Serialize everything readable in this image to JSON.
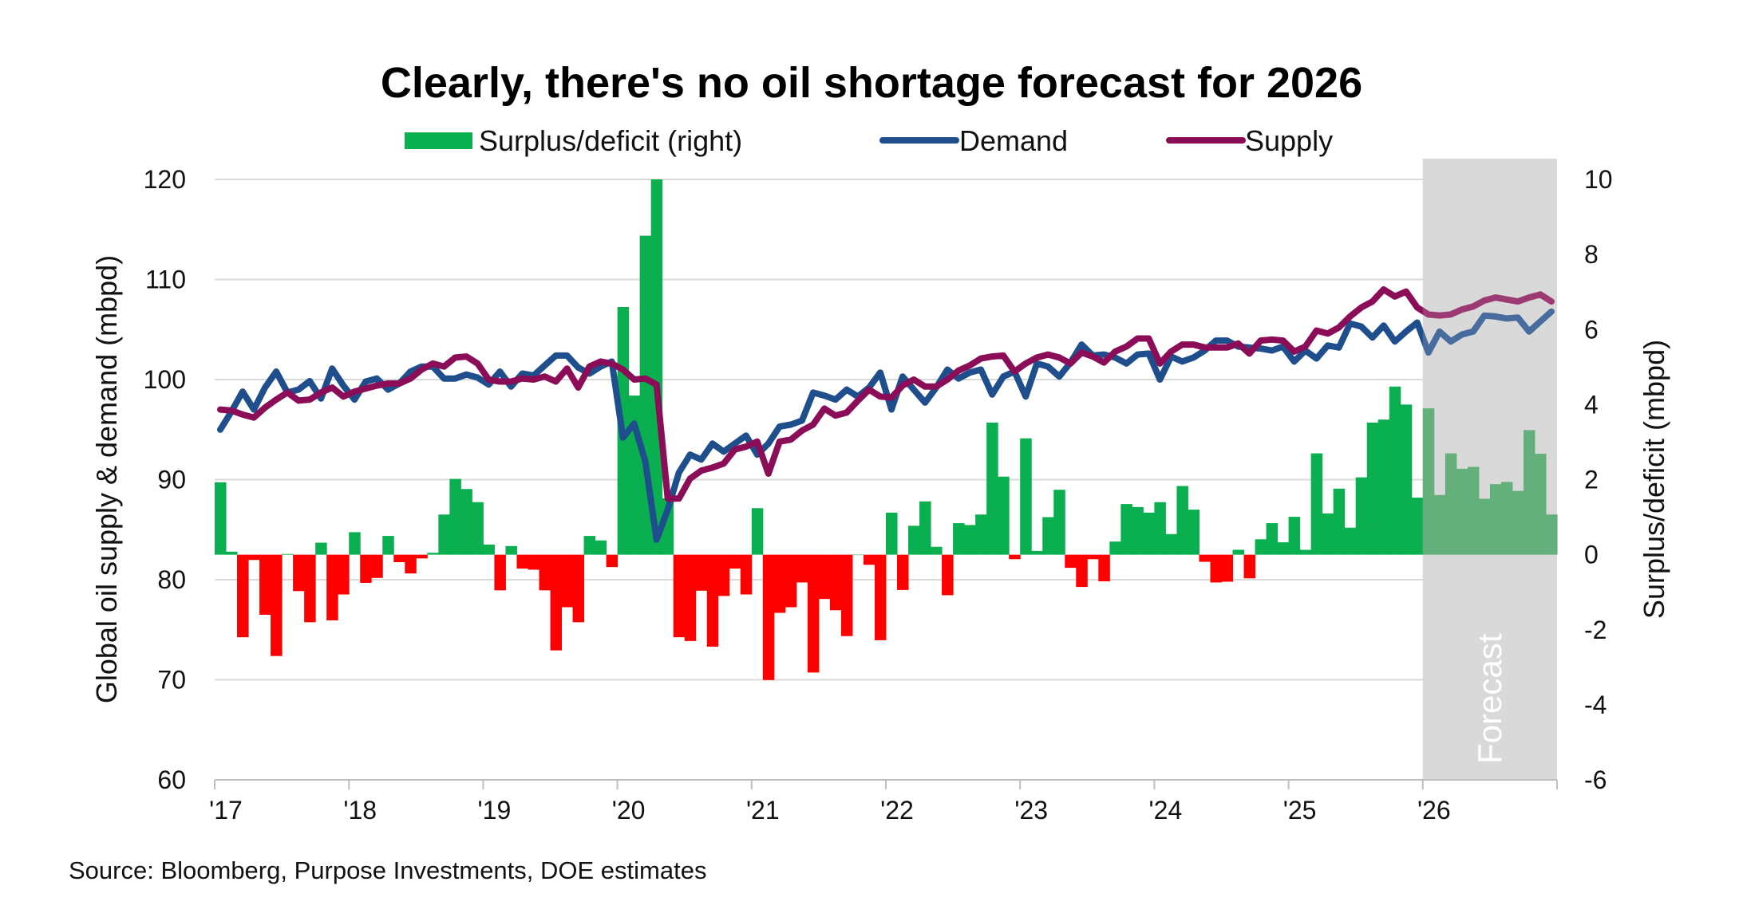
{
  "chart_data": {
    "type": "bar+line",
    "title": "Clearly, there's no oil shortage forecast for 2026",
    "source": "Source: Bloomberg, Purpose Investments, DOE estimates",
    "ylabel": "Global oil supply & demand (mbpd)",
    "y2label": "Surplus/deficit (mbpd)",
    "ylim": [
      60,
      120
    ],
    "y2lim": [
      -6,
      10
    ],
    "yticks": [
      "60",
      "70",
      "80",
      "90",
      "100",
      "110",
      "120"
    ],
    "y2ticks": [
      "-6",
      "-4",
      "-2",
      "0",
      "2",
      "4",
      "6",
      "8",
      "10"
    ],
    "xticks": [
      "'17",
      "'18",
      "'19",
      "'20",
      "'21",
      "'22",
      "'23",
      "'24",
      "'25",
      "'26"
    ],
    "x_start": "2017-01",
    "x_frequency": "monthly",
    "grid": true,
    "legend_position": "top",
    "forecast_label": "Forecast",
    "forecast_start": "2026-01",
    "colors": {
      "surplus": "#0aaf4f",
      "deficit": "#ff0000",
      "forecast_bar": "#43a463",
      "demand": "#1f4e8c",
      "supply": "#8b0d57",
      "forecast_shade": "#d9d9d9",
      "grid": "#d9d9d9"
    },
    "series": [
      {
        "name": "Surplus/deficit (right)",
        "type": "bar",
        "axis": "right",
        "values": [
          1.93,
          0.08,
          -2.2,
          -0.14,
          -1.6,
          -2.7,
          0.02,
          -0.97,
          -1.8,
          0.32,
          -1.75,
          -1.06,
          0.6,
          -0.75,
          -0.62,
          0.5,
          -0.2,
          -0.5,
          -0.1,
          0.05,
          1.07,
          2.02,
          1.75,
          1.4,
          0.27,
          -0.95,
          0.23,
          -0.37,
          -0.4,
          -0.95,
          -2.55,
          -1.4,
          -1.8,
          0.5,
          0.38,
          -0.33,
          6.6,
          4.24,
          8.5,
          10.0,
          1.5,
          -2.2,
          -2.3,
          -0.96,
          -2.45,
          -1.1,
          -0.37,
          -1.06,
          1.24,
          -3.34,
          -1.55,
          -1.4,
          -0.74,
          -3.14,
          -1.18,
          -1.48,
          -2.17,
          0.0,
          -0.27,
          -2.28,
          1.12,
          -0.94,
          0.77,
          1.42,
          0.21,
          -1.08,
          0.84,
          0.79,
          1.07,
          3.52,
          2.08,
          -0.12,
          3.1,
          0.1,
          1.0,
          1.73,
          -0.35,
          -0.86,
          -0.12,
          -0.71,
          0.35,
          1.35,
          1.27,
          1.12,
          1.4,
          0.55,
          1.83,
          1.2,
          -0.19,
          -0.74,
          -0.72,
          0.13,
          -0.63,
          0.41,
          0.84,
          0.33,
          1.01,
          0.13,
          2.7,
          1.1,
          1.76,
          0.72,
          2.06,
          3.52,
          3.6,
          4.48,
          4.0,
          1.52,
          3.9,
          1.59,
          2.7,
          2.29,
          2.34,
          1.49,
          1.88,
          1.94,
          1.7,
          3.32,
          2.69,
          1.07
        ]
      },
      {
        "name": "Demand",
        "type": "line",
        "axis": "left",
        "values": [
          95.0,
          96.8,
          98.8,
          97.0,
          99.2,
          100.8,
          98.7,
          99.0,
          99.85,
          98.1,
          101.1,
          99.4,
          98.0,
          99.8,
          100.1,
          99.0,
          99.6,
          100.8,
          101.3,
          101.3,
          100.1,
          100.1,
          100.5,
          100.2,
          99.5,
          100.8,
          99.3,
          100.6,
          100.4,
          101.4,
          102.4,
          102.4,
          101.2,
          100.6,
          101.3,
          101.8,
          94.2,
          95.6,
          91.8,
          84.0,
          87.0,
          90.7,
          92.5,
          92.0,
          93.6,
          92.8,
          93.6,
          94.4,
          92.5,
          93.6,
          95.3,
          95.5,
          95.9,
          98.7,
          98.4,
          98.0,
          99.0,
          98.3,
          99.2,
          100.7,
          97.0,
          100.3,
          99.0,
          97.7,
          99.2,
          101.0,
          100.1,
          100.7,
          101.0,
          98.5,
          100.3,
          100.8,
          98.3,
          101.6,
          101.3,
          100.3,
          101.7,
          103.5,
          102.4,
          102.5,
          102.2,
          101.6,
          102.5,
          102.6,
          100.0,
          102.3,
          101.8,
          102.2,
          102.9,
          103.9,
          103.9,
          103.3,
          103.2,
          103.1,
          102.9,
          103.3,
          101.8,
          102.9,
          102.1,
          103.4,
          103.2,
          105.6,
          105.3,
          104.2,
          105.4,
          103.8,
          104.8,
          105.7,
          102.7,
          104.8,
          103.8,
          104.5,
          104.8,
          106.4,
          106.3,
          106.1,
          106.2,
          104.8,
          105.8,
          106.8
        ]
      },
      {
        "name": "Supply",
        "type": "line",
        "axis": "left",
        "values": [
          97.0,
          96.9,
          96.5,
          96.2,
          97.2,
          98.0,
          98.7,
          97.9,
          98.0,
          98.7,
          99.2,
          98.3,
          98.8,
          99.1,
          99.4,
          99.6,
          99.6,
          100.1,
          101.0,
          101.6,
          101.3,
          102.2,
          102.3,
          101.6,
          100.0,
          99.8,
          99.8,
          100.1,
          100.0,
          100.3,
          99.8,
          101.1,
          99.2,
          101.3,
          101.8,
          101.6,
          101.0,
          100.0,
          100.1,
          99.5,
          88.1,
          88.1,
          90.1,
          90.9,
          91.2,
          91.6,
          93.0,
          93.3,
          93.8,
          90.6,
          93.8,
          94.0,
          94.9,
          95.5,
          97.1,
          96.4,
          96.7,
          97.9,
          99.0,
          98.3,
          98.2,
          99.4,
          100.0,
          99.3,
          99.3,
          100.0,
          100.9,
          101.4,
          102.1,
          102.3,
          102.4,
          100.8,
          101.6,
          102.2,
          102.5,
          102.2,
          101.6,
          102.7,
          102.3,
          101.7,
          102.8,
          103.3,
          104.1,
          104.1,
          101.6,
          102.8,
          103.5,
          103.5,
          103.2,
          103.2,
          103.2,
          103.6,
          102.6,
          103.9,
          104.0,
          103.9,
          102.8,
          103.3,
          104.9,
          104.6,
          105.2,
          106.3,
          107.2,
          107.8,
          109.0,
          108.3,
          108.8,
          107.2,
          106.5,
          106.4,
          106.5,
          107.0,
          107.3,
          107.9,
          108.2,
          108.0,
          107.8,
          108.2,
          108.5,
          107.8
        ]
      }
    ]
  }
}
